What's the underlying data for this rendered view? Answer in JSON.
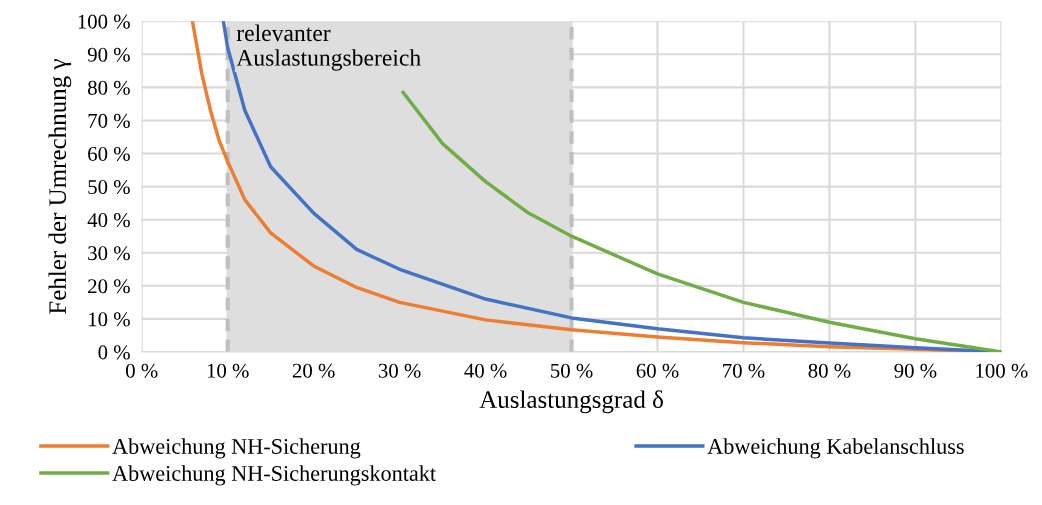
{
  "chart_data": {
    "type": "line",
    "xlabel": "Auslastungsgrad δ",
    "ylabel": "Fehler der Umrechnung γ",
    "xlim": [
      0,
      100
    ],
    "ylim": [
      0,
      100
    ],
    "xticks": [
      {
        "value": 0,
        "label": "0 %"
      },
      {
        "value": 10,
        "label": "10 %"
      },
      {
        "value": 20,
        "label": "20 %"
      },
      {
        "value": 30,
        "label": "30 %"
      },
      {
        "value": 40,
        "label": "40 %"
      },
      {
        "value": 50,
        "label": "50 %"
      },
      {
        "value": 60,
        "label": "60 %"
      },
      {
        "value": 70,
        "label": "70 %"
      },
      {
        "value": 80,
        "label": "80 %"
      },
      {
        "value": 90,
        "label": "90 %"
      },
      {
        "value": 100,
        "label": "100 %"
      }
    ],
    "yticks": [
      {
        "value": 0,
        "label": "0 %"
      },
      {
        "value": 10,
        "label": "10 %"
      },
      {
        "value": 20,
        "label": "20 %"
      },
      {
        "value": 30,
        "label": "30 %"
      },
      {
        "value": 40,
        "label": "40 %"
      },
      {
        "value": 50,
        "label": "50 %"
      },
      {
        "value": 60,
        "label": "60 %"
      },
      {
        "value": 70,
        "label": "70 %"
      },
      {
        "value": 80,
        "label": "80 %"
      },
      {
        "value": 90,
        "label": "90 %"
      },
      {
        "value": 100,
        "label": "100 %"
      }
    ],
    "grid": true,
    "legend": "bottom",
    "marker": "none",
    "line_style": "solid",
    "series": [
      {
        "name": "Abweichung NH-Sicherung",
        "color": "#ed7d31",
        "x": [
          5.9,
          7,
          8,
          9,
          10,
          12,
          15,
          20,
          25,
          30,
          40,
          50,
          60,
          70,
          80,
          90,
          100
        ],
        "values": [
          100,
          84,
          73,
          64,
          57.6,
          46,
          36,
          26,
          19.5,
          15,
          9.7,
          6.7,
          4.5,
          2.8,
          1.6,
          0.8,
          0
        ]
      },
      {
        "name": "Abweichung Kabelanschluss",
        "color": "#4472c4",
        "x": [
          9.5,
          10,
          12,
          15,
          20,
          25,
          30,
          40,
          50,
          60,
          70,
          80,
          90,
          100
        ],
        "values": [
          100,
          92,
          73,
          56,
          42,
          31,
          25,
          16,
          10.3,
          7,
          4.3,
          2.7,
          1.3,
          0
        ]
      },
      {
        "name": "Abweichung NH-Sicherungskontakt",
        "color": "#70ad47",
        "x": [
          30.4,
          35,
          40,
          45,
          50,
          60,
          70,
          80,
          90,
          100
        ],
        "values": [
          78.5,
          63,
          51.5,
          42,
          35,
          23.6,
          15,
          9,
          4,
          0
        ]
      }
    ],
    "bands": [
      {
        "axis": "x",
        "from": 10,
        "to": 50,
        "label": "relevanter\nAuslastungsbereich",
        "color": "#dedede"
      }
    ]
  }
}
